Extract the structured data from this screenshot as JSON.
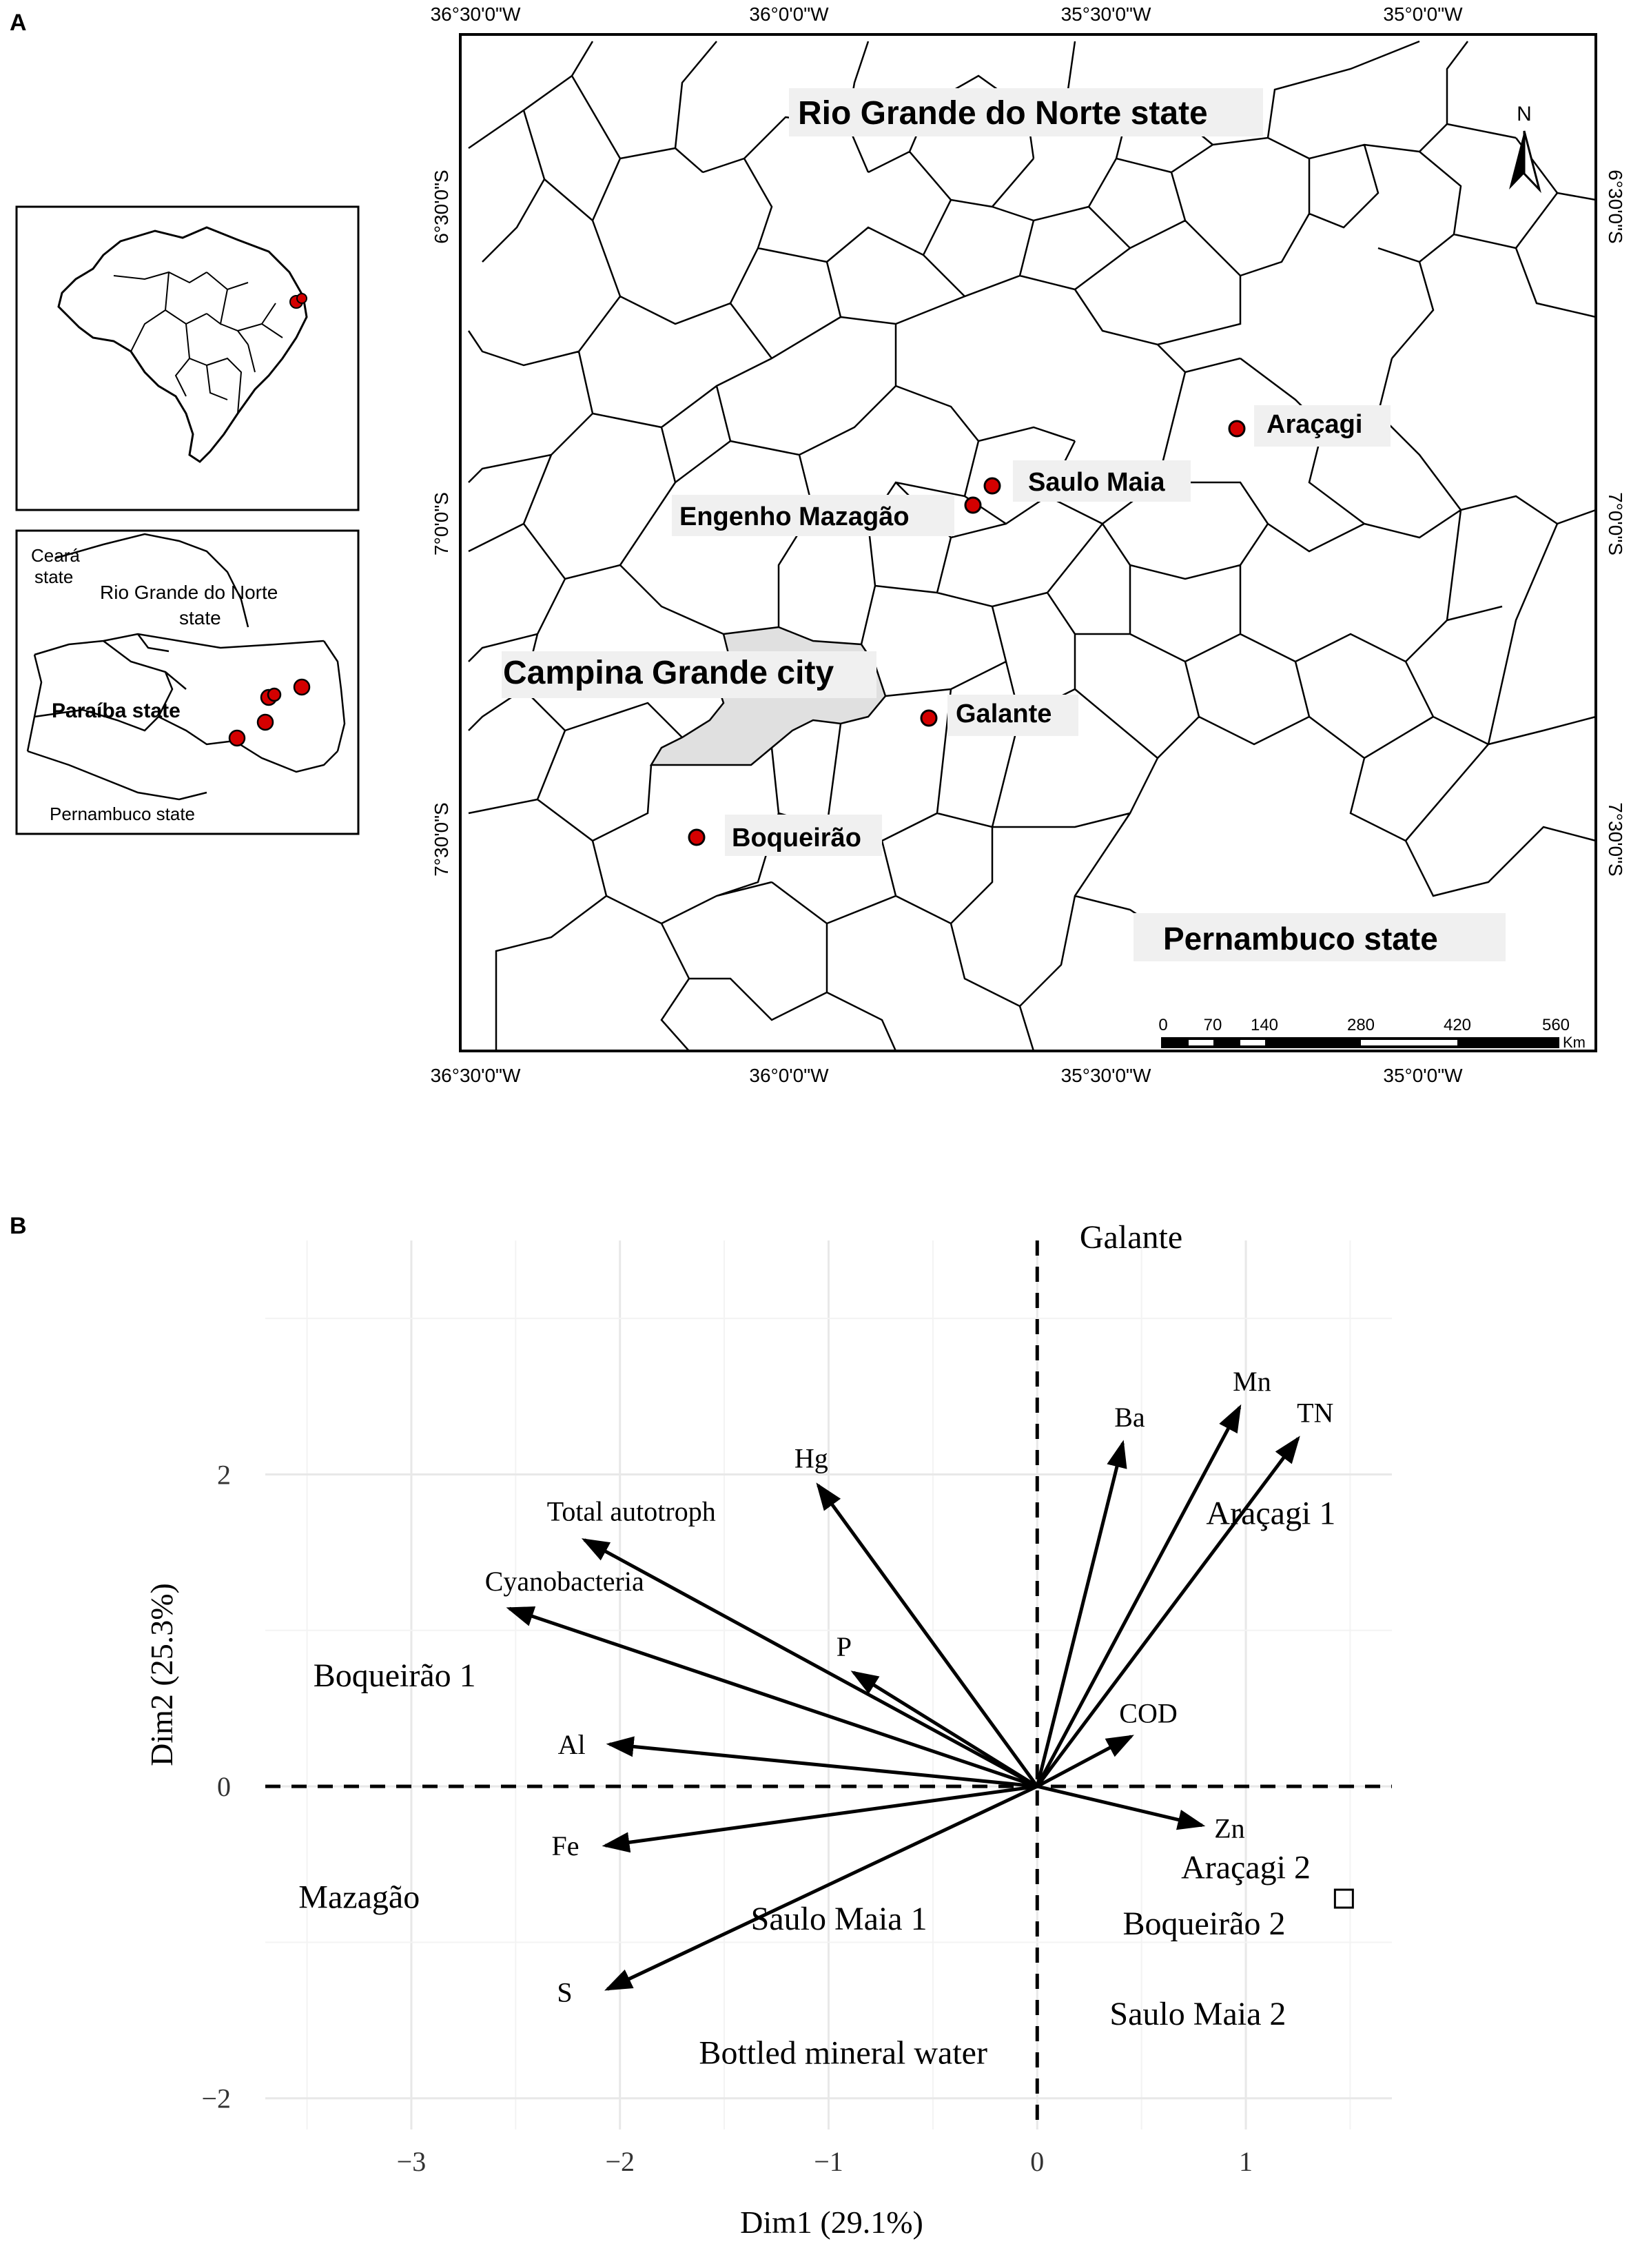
{
  "panel_a": {
    "label": "A",
    "coords_top": [
      "36°30'0\"W",
      "36°0'0\"W",
      "35°30'0\"W",
      "35°0'0\"W"
    ],
    "coords_bottom": [
      "36°30'0\"W",
      "36°0'0\"W",
      "35°30'0\"W",
      "35°0'0\"W"
    ],
    "coords_left": [
      "6°30'0\"S",
      "7°0'0\"S",
      "7°30'0\"S"
    ],
    "coords_right": [
      "6°30'0\"S",
      "7°0'0\"S",
      "7°30'0\"S"
    ],
    "region_labels": {
      "rio_grande": "Rio Grande do Norte state",
      "pernambuco": "Pernambuco state",
      "campina": "Campina Grande city"
    },
    "sites": [
      {
        "name": "Araçagi"
      },
      {
        "name": "Saulo Maia"
      },
      {
        "name": "Engenho Mazagão"
      },
      {
        "name": "Galante"
      },
      {
        "name": "Boqueirão"
      }
    ],
    "north": "N",
    "scale": {
      "ticks": [
        "0",
        "70",
        "140",
        "280",
        "420",
        "560"
      ],
      "unit": "Km"
    },
    "inset_states": {
      "ceara": [
        "Ceará",
        "state"
      ],
      "rgn": [
        "Rio Grande do Norte",
        "state"
      ],
      "paraiba": "Paraíba state",
      "pernambuco": "Pernambuco state"
    },
    "colors": {
      "site": "#d40000",
      "campina_fill": "#e0e0e0",
      "label_bg": "#f0f0f0"
    }
  },
  "panel_b": {
    "label": "B",
    "chart_data": {
      "type": "biplot",
      "xlabel": "Dim1 (29.1%)",
      "ylabel": "Dim2 (25.3%)",
      "xlim": [
        -3.7,
        1.7
      ],
      "ylim": [
        -2.2,
        3.5
      ],
      "x_ticks": [
        {
          "v": -3,
          "t": "−3"
        },
        {
          "v": -2,
          "t": "−2"
        },
        {
          "v": -1,
          "t": "−1"
        },
        {
          "v": 0,
          "t": "0"
        },
        {
          "v": 1,
          "t": "1"
        }
      ],
      "y_ticks": [
        {
          "v": -2,
          "t": "−2"
        },
        {
          "v": 0,
          "t": "0"
        },
        {
          "v": 2,
          "t": "2"
        }
      ],
      "vectors": [
        {
          "name": "Ba",
          "x": 0.41,
          "y": 2.2
        },
        {
          "name": "Mn",
          "x": 0.97,
          "y": 2.43
        },
        {
          "name": "TN",
          "x": 1.25,
          "y": 2.23
        },
        {
          "name": "Hg",
          "x": -1.05,
          "y": 1.93
        },
        {
          "name": "Total autotroph",
          "x": -2.17,
          "y": 1.58
        },
        {
          "name": "Cyanobacteria",
          "x": -2.53,
          "y": 1.14
        },
        {
          "name": "P",
          "x": -0.88,
          "y": 0.73
        },
        {
          "name": "COD",
          "x": 0.45,
          "y": 0.32
        },
        {
          "name": "Al",
          "x": -2.05,
          "y": 0.27
        },
        {
          "name": "Zn",
          "x": 0.79,
          "y": -0.25
        },
        {
          "name": "Fe",
          "x": -2.07,
          "y": -0.38
        },
        {
          "name": "S",
          "x": -2.06,
          "y": -1.3
        }
      ],
      "samples": [
        {
          "name": "Galante",
          "x": 0.45,
          "y": 3.5
        },
        {
          "name": "Araçagi 1",
          "x": 1.12,
          "y": 1.73
        },
        {
          "name": "Boqueirão 1",
          "x": -3.08,
          "y": 0.69
        },
        {
          "name": "Mazagão",
          "x": -3.25,
          "y": -0.73
        },
        {
          "name": "Saulo Maia 1",
          "x": -0.95,
          "y": -0.87
        },
        {
          "name": "Araçagi 2",
          "x": 1.0,
          "y": -0.54
        },
        {
          "name": "Boqueirão 2",
          "x": 0.8,
          "y": -0.9
        },
        {
          "name": "Saulo Maia 2",
          "x": 0.77,
          "y": -1.48
        },
        {
          "name": "Bottled mineral water",
          "x": -0.93,
          "y": -1.73
        }
      ],
      "marker": {
        "shape": "open-square",
        "x": 1.47,
        "y": -0.72
      },
      "grid": true
    }
  }
}
